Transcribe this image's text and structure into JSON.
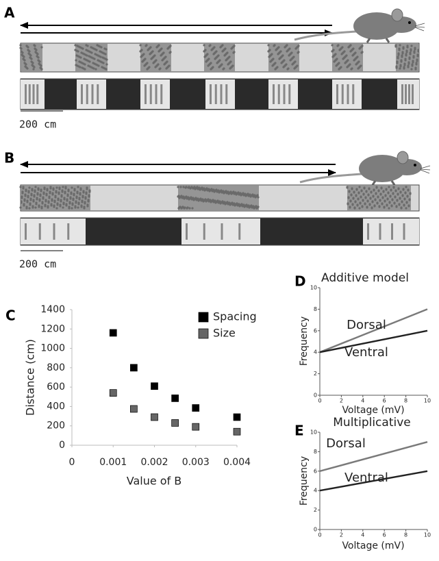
{
  "panels": {
    "a": {
      "label": "A",
      "scale": "200 cm"
    },
    "b": {
      "label": "B",
      "scale": "200 cm"
    }
  },
  "chart_data": [
    {
      "type": "scatter",
      "label": "C",
      "x_label": "Value of B",
      "y_label": "Distance (cm)",
      "x": [
        0.001,
        0.0015,
        0.002,
        0.0025,
        0.003,
        0.004
      ],
      "series": [
        {
          "name": "Spacing",
          "color": "#000000",
          "values": [
            1160,
            800,
            610,
            485,
            385,
            290
          ]
        },
        {
          "name": "Size",
          "color": "#666666",
          "values": [
            540,
            375,
            290,
            230,
            190,
            140
          ]
        }
      ],
      "xlim": [
        0,
        0.004
      ],
      "xticks": [
        0,
        0.001,
        0.002,
        0.003,
        0.004
      ],
      "ylim": [
        0,
        1400
      ],
      "yticks": [
        0,
        200,
        400,
        600,
        800,
        1000,
        1200,
        1400
      ],
      "legend": "upper right",
      "grid": false
    },
    {
      "type": "line",
      "label": "D",
      "title": "Additive model",
      "x_label": "Voltage (mV)",
      "y_label": "Frequency",
      "x": [
        0,
        10
      ],
      "series": [
        {
          "name": "Dorsal",
          "color": "#7a7a7a",
          "values": [
            4,
            8
          ]
        },
        {
          "name": "Ventral",
          "color": "#222222",
          "values": [
            4,
            6
          ]
        }
      ],
      "xlim": [
        0,
        10
      ],
      "xticks": [
        0,
        2,
        4,
        6,
        8,
        10
      ],
      "ylim": [
        0,
        10
      ],
      "yticks": [
        0,
        2,
        4,
        6,
        8,
        10
      ],
      "legend": false,
      "grid": false
    },
    {
      "type": "line",
      "label": "E",
      "title": "Multiplicative",
      "x_label": "Voltage (mV)",
      "y_label": "Frequency",
      "x": [
        0,
        10
      ],
      "series": [
        {
          "name": "Dorsal",
          "color": "#7a7a7a",
          "values": [
            6,
            9
          ]
        },
        {
          "name": "Ventral",
          "color": "#222222",
          "values": [
            4,
            6
          ]
        }
      ],
      "xlim": [
        0,
        10
      ],
      "xticks": [
        0,
        2,
        4,
        6,
        8,
        10
      ],
      "ylim": [
        0,
        10
      ],
      "yticks": [
        0,
        2,
        4,
        6,
        8,
        10
      ],
      "legend": false,
      "grid": false
    }
  ]
}
